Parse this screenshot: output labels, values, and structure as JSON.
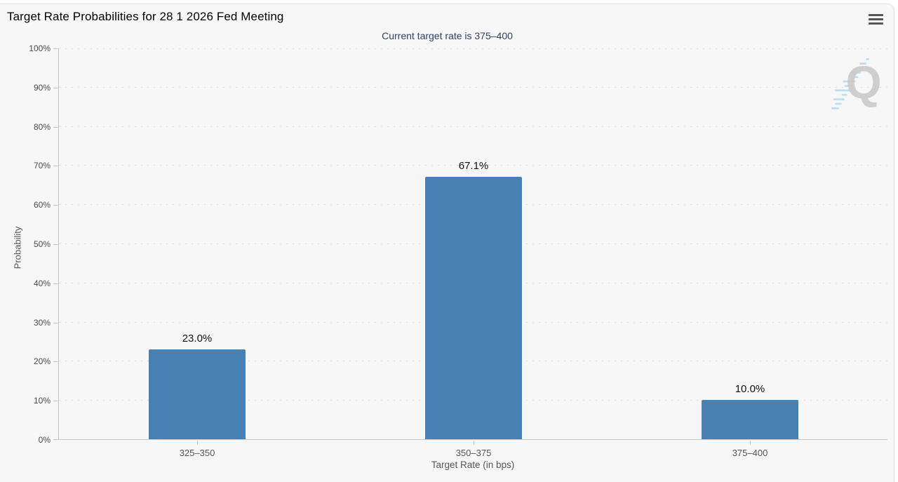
{
  "icons": {
    "export_menu": "hamburger-icon",
    "watermark": "quikstrike-q-logo"
  },
  "watermark": {
    "letter": "Q"
  },
  "chart_data": {
    "type": "bar",
    "title": "Target Rate Probabilities for 28 1 2026 Fed Meeting",
    "subtitle": "Current target rate is 375–400",
    "categories": [
      "325–350",
      "350–375",
      "375–400"
    ],
    "values": [
      23.0,
      67.1,
      10.0
    ],
    "value_labels": [
      "23.0%",
      "67.1%",
      "10.0%"
    ],
    "xlabel": "Target Rate (in bps)",
    "ylabel": "Probability",
    "ylim": [
      0,
      100
    ],
    "ytick_values": [
      0,
      10,
      20,
      30,
      40,
      50,
      60,
      70,
      80,
      90,
      100
    ],
    "ytick_labels": [
      "0%",
      "10%",
      "20%",
      "30%",
      "40%",
      "50%",
      "60%",
      "70%",
      "80%",
      "90%",
      "100%"
    ],
    "grid": "dotted-horizontal",
    "legend": "none",
    "bar_color": "#4781b4",
    "subtitle_color": "#2e3f6e",
    "axis_color": "#c9c9c9"
  }
}
